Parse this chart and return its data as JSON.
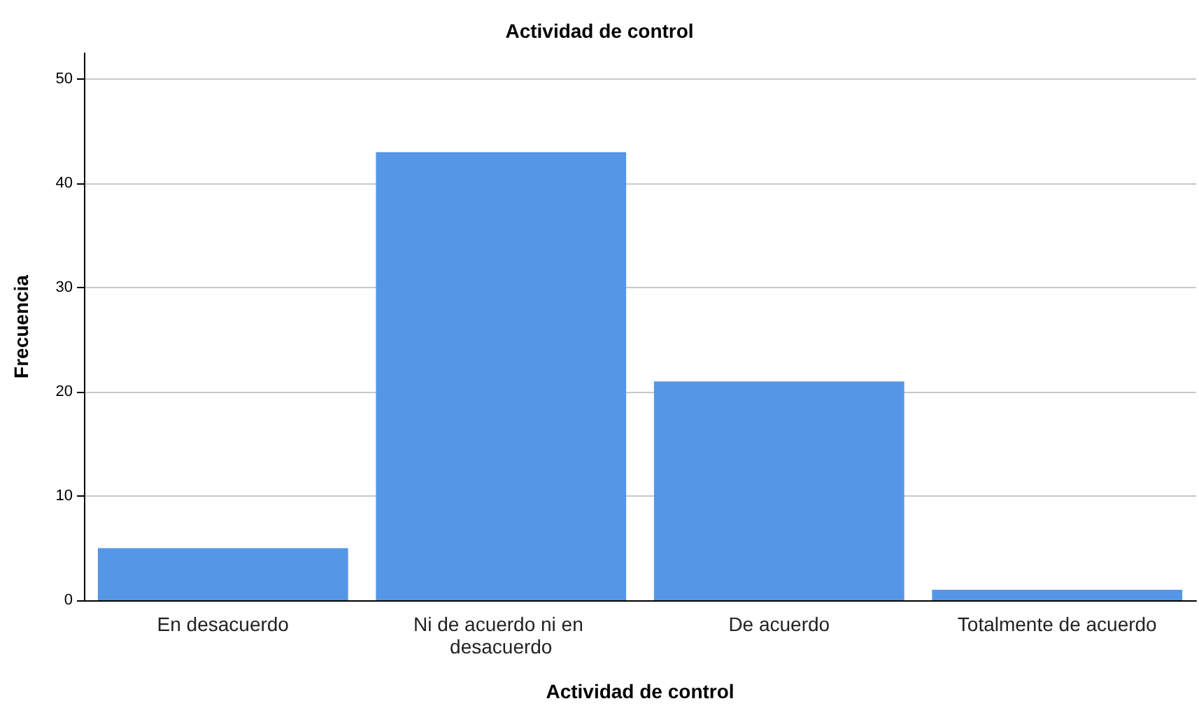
{
  "chart_data": {
    "type": "bar",
    "title": "Actividad de control",
    "xlabel": "Actividad de control",
    "ylabel": "Frecuencia",
    "categories": [
      "En desacuerdo",
      "Ni de acuerdo ni en desacuerdo",
      "De acuerdo",
      "Totalmente de acuerdo"
    ],
    "values": [
      5,
      43,
      21,
      1
    ],
    "color": "#5596e6",
    "ylim": [
      0,
      52.5
    ],
    "yticks": [
      0,
      10,
      20,
      30,
      40,
      50
    ],
    "grid": "y"
  }
}
